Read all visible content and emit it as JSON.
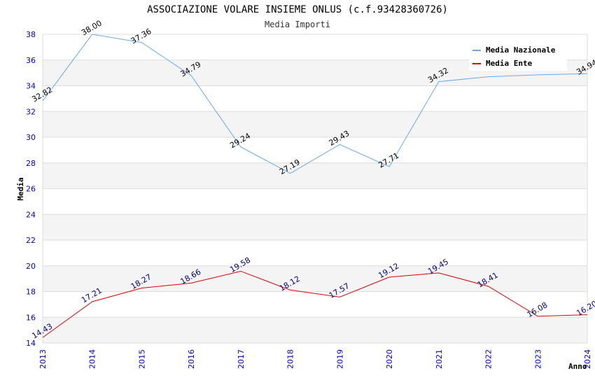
{
  "chart_data": {
    "type": "line",
    "title": "ASSOCIAZIONE VOLARE INSIEME ONLUS (c.f.93428360726)",
    "subtitle": "Media Importi",
    "xlabel": "Anno",
    "ylabel": "Media",
    "x": [
      "2013",
      "2014",
      "2015",
      "2016",
      "2017",
      "2018",
      "2019",
      "2020",
      "2021",
      "2022",
      "2023",
      "2024"
    ],
    "ylim": [
      14,
      38
    ],
    "yticks": [
      "14",
      "16",
      "18",
      "20",
      "22",
      "24",
      "26",
      "28",
      "30",
      "32",
      "34",
      "36",
      "38"
    ],
    "grid": true,
    "legend_position": "top-right",
    "series": [
      {
        "name": "Media Nazionale",
        "color": "#6aaae8",
        "label_color": "#000000",
        "values": [
          32.82,
          38.0,
          37.36,
          34.79,
          29.24,
          27.19,
          29.43,
          27.71,
          34.32,
          34.7,
          34.85,
          34.94
        ],
        "labels": [
          "32.82",
          "38.00",
          "37.36",
          "34.79",
          "29.24",
          "27.19",
          "29.43",
          "27.71",
          "34.32",
          "",
          "",
          "34.94"
        ]
      },
      {
        "name": "Media Ente",
        "color": "#e00000",
        "label_color": "#000080",
        "values": [
          14.43,
          17.21,
          18.27,
          18.66,
          19.58,
          18.12,
          17.57,
          19.12,
          19.45,
          18.41,
          16.08,
          16.2
        ],
        "labels": [
          "14.43",
          "17.21",
          "18.27",
          "18.66",
          "19.58",
          "18.12",
          "17.57",
          "19.12",
          "19.45",
          "18.41",
          "16.08",
          "16.20"
        ]
      }
    ]
  }
}
